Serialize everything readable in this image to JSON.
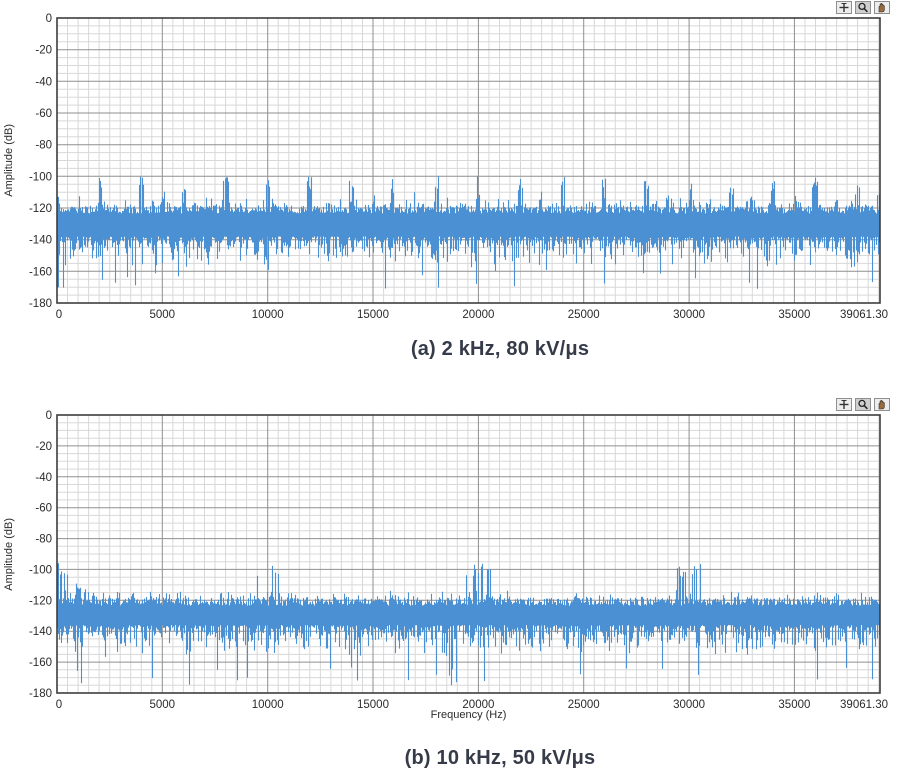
{
  "page": {
    "background": "#ffffff"
  },
  "toolbar": {
    "tools": [
      {
        "name": "cursor",
        "icon": "crosshair-icon"
      },
      {
        "name": "zoom",
        "icon": "magnifier-icon"
      },
      {
        "name": "pan",
        "icon": "hand-icon"
      }
    ]
  },
  "chart_data": [
    {
      "type": "line",
      "title": "",
      "caption": "(a) 2 kHz, 80 kV/μs",
      "xlabel": "",
      "ylabel": "Amplitude (dB)",
      "xlim": [
        0,
        39061.3
      ],
      "ylim": [
        -180,
        0
      ],
      "x_ticks": [
        0,
        5000,
        10000,
        15000,
        20000,
        25000,
        30000,
        35000,
        39061.3
      ],
      "x_tick_labels": [
        "0",
        "5000",
        "10000",
        "15000",
        "20000",
        "25000",
        "30000",
        "35000",
        "39061.30"
      ],
      "y_ticks": [
        0,
        -20,
        -40,
        -60,
        -80,
        -100,
        -120,
        -140,
        -160,
        -180
      ],
      "y_tick_labels": [
        "0",
        "-20",
        "-40",
        "-60",
        "-80",
        "-100",
        "-120",
        "-140",
        "-160",
        "-180"
      ],
      "x_minor_step_hz": 500,
      "y_minor_step_db": 5,
      "grid": true,
      "legend": "none",
      "series_color": "#4a90d2",
      "signal": {
        "description": "broadband noise floor with switching-frequency harmonic spikes",
        "noise_band_top_db": -121,
        "noise_band_bottom_db": -148,
        "noise_center_db": -133,
        "spike_spacing_hz": 2000,
        "spike_peak_db": -100,
        "spike_halfwidth_hz": 130,
        "minor_spike_spacing_hz": 1000,
        "minor_spike_peak_db": -109,
        "dip_min_db": -172,
        "low_freq_cluster": false
      }
    },
    {
      "type": "line",
      "title": "",
      "caption": "(b) 10 kHz, 50 kV/μs",
      "xlabel": "Frequency (Hz)",
      "ylabel": "Amplitude (dB)",
      "xlim": [
        0,
        39061.3
      ],
      "ylim": [
        -180,
        0
      ],
      "x_ticks": [
        0,
        5000,
        10000,
        15000,
        20000,
        25000,
        30000,
        35000,
        39061.3
      ],
      "x_tick_labels": [
        "0",
        "5000",
        "10000",
        "15000",
        "20000",
        "25000",
        "30000",
        "35000",
        "39061.30"
      ],
      "y_ticks": [
        0,
        -20,
        -40,
        -60,
        -80,
        -100,
        -120,
        -140,
        -160,
        -180
      ],
      "y_tick_labels": [
        "0",
        "-20",
        "-40",
        "-60",
        "-80",
        "-100",
        "-120",
        "-140",
        "-160",
        "-180"
      ],
      "x_minor_step_hz": 500,
      "y_minor_step_db": 5,
      "grid": true,
      "legend": "none",
      "series_color": "#4a90d2",
      "signal": {
        "description": "broadband noise floor with harmonic spike clusters at multiples of 10 kHz and a low-frequency cluster",
        "noise_band_top_db": -121,
        "noise_band_bottom_db": -146,
        "noise_center_db": -131,
        "spike_spacing_hz": 10000,
        "spike_peak_db": -96,
        "spike_halfwidth_hz": 650,
        "minor_spike_spacing_hz": 0,
        "minor_spike_peak_db": 0,
        "dip_min_db": -175,
        "low_freq_cluster": true
      }
    }
  ]
}
